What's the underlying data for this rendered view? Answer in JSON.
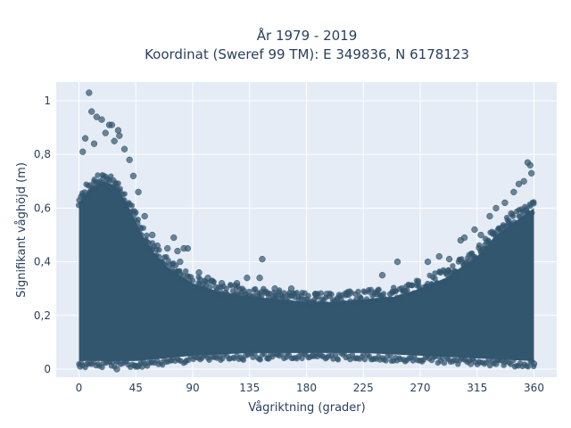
{
  "chart_data": {
    "type": "scatter",
    "title_line1": "År 1979 - 2019",
    "title_line2": "Koordinat (Sweref 99 TM): E 349836, N 6178123",
    "xlabel": "Vågriktning (grader)",
    "ylabel": "Signifikant våghöjd (m)",
    "xlim": [
      -18,
      378
    ],
    "ylim": [
      -0.03,
      1.07
    ],
    "x_ticks": [
      0,
      45,
      90,
      135,
      180,
      225,
      270,
      315,
      360
    ],
    "x_tick_labels": [
      "0",
      "45",
      "90",
      "135",
      "180",
      "225",
      "270",
      "315",
      "360"
    ],
    "y_ticks": [
      0,
      0.2,
      0.4,
      0.6,
      0.8,
      1
    ],
    "y_tick_labels": [
      "0",
      "0,2",
      "0,4",
      "0,6",
      "0,8",
      "1"
    ],
    "grid": true,
    "marker_color": "#33566f",
    "band_lower_profile": [
      [
        0,
        0.03
      ],
      [
        45,
        0.03
      ],
      [
        90,
        0.05
      ],
      [
        135,
        0.06
      ],
      [
        180,
        0.06
      ],
      [
        225,
        0.06
      ],
      [
        270,
        0.05
      ],
      [
        315,
        0.04
      ],
      [
        360,
        0.03
      ]
    ],
    "band_upper_profile": [
      [
        0,
        0.62
      ],
      [
        10,
        0.68
      ],
      [
        20,
        0.7
      ],
      [
        30,
        0.68
      ],
      [
        40,
        0.6
      ],
      [
        50,
        0.5
      ],
      [
        60,
        0.43
      ],
      [
        70,
        0.38
      ],
      [
        90,
        0.32
      ],
      [
        110,
        0.29
      ],
      [
        135,
        0.27
      ],
      [
        160,
        0.26
      ],
      [
        180,
        0.25
      ],
      [
        200,
        0.25
      ],
      [
        225,
        0.26
      ],
      [
        250,
        0.27
      ],
      [
        270,
        0.3
      ],
      [
        290,
        0.34
      ],
      [
        315,
        0.42
      ],
      [
        330,
        0.5
      ],
      [
        345,
        0.55
      ],
      [
        360,
        0.6
      ]
    ],
    "outliers": [
      {
        "x": 8,
        "y": 1.03
      },
      {
        "x": 10,
        "y": 0.96
      },
      {
        "x": 14,
        "y": 0.94
      },
      {
        "x": 18,
        "y": 0.93
      },
      {
        "x": 24,
        "y": 0.91
      },
      {
        "x": 26,
        "y": 0.91
      },
      {
        "x": 31,
        "y": 0.89
      },
      {
        "x": 32,
        "y": 0.87
      },
      {
        "x": 5,
        "y": 0.86
      },
      {
        "x": 21,
        "y": 0.88
      },
      {
        "x": 28,
        "y": 0.85
      },
      {
        "x": 36,
        "y": 0.82
      },
      {
        "x": 3,
        "y": 0.81
      },
      {
        "x": 12,
        "y": 0.84
      },
      {
        "x": 40,
        "y": 0.78
      },
      {
        "x": 43,
        "y": 0.72
      },
      {
        "x": 47,
        "y": 0.66
      },
      {
        "x": 52,
        "y": 0.57
      },
      {
        "x": 58,
        "y": 0.5
      },
      {
        "x": 62,
        "y": 0.46
      },
      {
        "x": 70,
        "y": 0.45
      },
      {
        "x": 75,
        "y": 0.49
      },
      {
        "x": 78,
        "y": 0.44
      },
      {
        "x": 83,
        "y": 0.45
      },
      {
        "x": 86,
        "y": 0.45
      },
      {
        "x": 80,
        "y": 0.4
      },
      {
        "x": 95,
        "y": 0.36
      },
      {
        "x": 102,
        "y": 0.34
      },
      {
        "x": 113,
        "y": 0.32
      },
      {
        "x": 125,
        "y": 0.32
      },
      {
        "x": 133,
        "y": 0.34
      },
      {
        "x": 143,
        "y": 0.34
      },
      {
        "x": 145,
        "y": 0.41
      },
      {
        "x": 155,
        "y": 0.3
      },
      {
        "x": 168,
        "y": 0.3
      },
      {
        "x": 187,
        "y": 0.28
      },
      {
        "x": 196,
        "y": 0.28
      },
      {
        "x": 212,
        "y": 0.28
      },
      {
        "x": 236,
        "y": 0.28
      },
      {
        "x": 240,
        "y": 0.35
      },
      {
        "x": 252,
        "y": 0.4
      },
      {
        "x": 268,
        "y": 0.32
      },
      {
        "x": 276,
        "y": 0.4
      },
      {
        "x": 285,
        "y": 0.42
      },
      {
        "x": 293,
        "y": 0.41
      },
      {
        "x": 302,
        "y": 0.48
      },
      {
        "x": 305,
        "y": 0.49
      },
      {
        "x": 313,
        "y": 0.52
      },
      {
        "x": 318,
        "y": 0.5
      },
      {
        "x": 325,
        "y": 0.57
      },
      {
        "x": 330,
        "y": 0.6
      },
      {
        "x": 337,
        "y": 0.62
      },
      {
        "x": 344,
        "y": 0.66
      },
      {
        "x": 348,
        "y": 0.69
      },
      {
        "x": 352,
        "y": 0.7
      },
      {
        "x": 355,
        "y": 0.77
      },
      {
        "x": 357,
        "y": 0.76
      },
      {
        "x": 358,
        "y": 0.73
      },
      {
        "x": 342,
        "y": 0.58
      },
      {
        "x": 1,
        "y": 0.01
      },
      {
        "x": 30,
        "y": 0.0
      },
      {
        "x": 45,
        "y": 0.01
      },
      {
        "x": 50,
        "y": 0.01
      },
      {
        "x": 150,
        "y": 0.04
      },
      {
        "x": 185,
        "y": 0.05
      },
      {
        "x": 310,
        "y": 0.02
      },
      {
        "x": 330,
        "y": 0.02
      },
      {
        "x": 360,
        "y": 0.02
      }
    ]
  }
}
